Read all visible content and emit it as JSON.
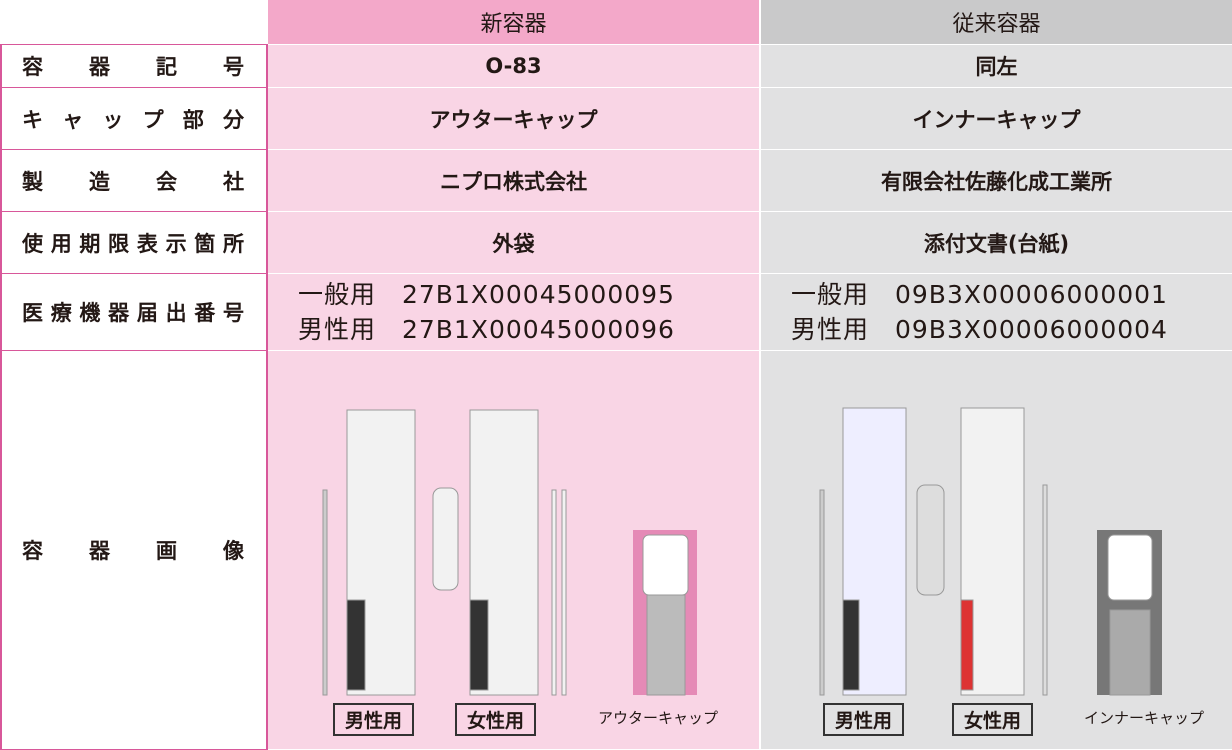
{
  "header": {
    "columns": [
      "新容器",
      "従来容器"
    ]
  },
  "rows": [
    {
      "label": "容器記号",
      "new": "O-83",
      "old": "同左"
    },
    {
      "label": "キャップ部分",
      "new": "アウターキャップ",
      "old": "インナーキャップ"
    },
    {
      "label": "製造会社",
      "new": "ニプロ株式会社",
      "old": "有限会社佐藤化成工業所"
    },
    {
      "label": "使用期限表示箇所",
      "new": "外袋",
      "old": "添付文書(台紙)"
    },
    {
      "label": "医療機器届出番号",
      "new": [
        "一般用　27B1X00045000095",
        "男性用　27B1X00045000096"
      ],
      "old": [
        "一般用　09B3X00006000001",
        "男性用　09B3X00006000004"
      ]
    },
    {
      "label": "容器画像",
      "new": [
        "男性用",
        "女性用",
        "アウターキャップ"
      ],
      "old": [
        "男性用",
        "女性用",
        "インナーキャップ"
      ]
    }
  ]
}
